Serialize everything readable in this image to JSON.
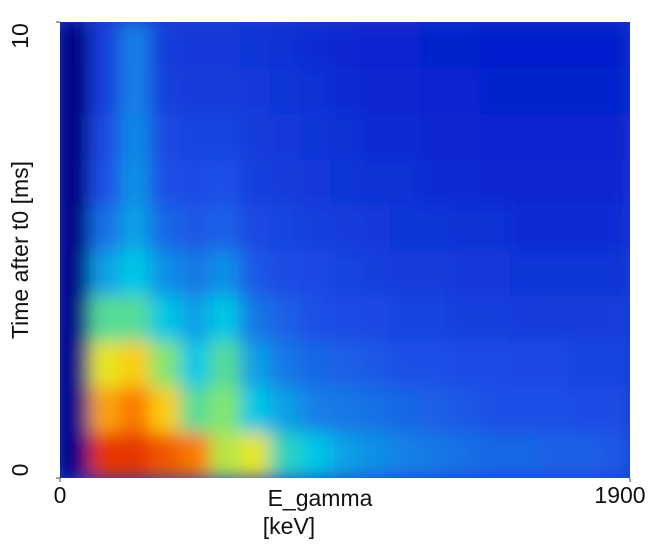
{
  "chart_data": {
    "type": "heatmap",
    "xlabel": [
      "E_gamma",
      "[keV]"
    ],
    "ylabel": "Time after t0 [ms]",
    "xlim": [
      0,
      1900
    ],
    "xticks": [
      0,
      1900
    ],
    "ylim": [
      0,
      10
    ],
    "yticks": [
      0,
      10
    ],
    "colormap": "jet",
    "zlim": [
      0,
      10
    ],
    "xbins": [
      0,
      100,
      200,
      300,
      400,
      500,
      600,
      700,
      800,
      900,
      1000,
      1100,
      1200,
      1300,
      1400,
      1500,
      1600,
      1700,
      1800,
      1900
    ],
    "ybins": [
      0,
      1,
      2,
      3,
      4,
      5,
      6,
      7,
      8,
      9,
      10
    ],
    "z": [
      [
        0.3,
        9.5,
        9.5,
        9,
        8.5,
        6.5,
        7,
        5,
        4.5,
        4,
        3.8,
        3.6,
        3.5,
        3.4,
        3.3,
        3.3,
        3.2,
        3.2,
        3.1
      ],
      [
        0.3,
        8,
        8.5,
        7.5,
        5.5,
        6,
        4.5,
        4,
        3.6,
        3.5,
        3.4,
        3.3,
        3.2,
        3.1,
        3,
        3,
        3,
        2.9,
        2.9
      ],
      [
        0.3,
        7,
        7.5,
        6,
        4.5,
        5.5,
        4,
        3.5,
        3.3,
        3.2,
        3.1,
        3,
        3,
        2.9,
        2.9,
        2.8,
        2.8,
        2.7,
        2.7
      ],
      [
        0.3,
        5.5,
        5.5,
        4.5,
        4,
        4.5,
        3.5,
        3.2,
        3,
        2.9,
        2.8,
        2.7,
        2.7,
        2.6,
        2.6,
        2.5,
        2.5,
        2.5,
        2.5
      ],
      [
        0.3,
        4,
        4.5,
        3.8,
        3.5,
        3.8,
        3.1,
        2.9,
        2.8,
        2.7,
        2.6,
        2.5,
        2.5,
        2.4,
        2.4,
        2.3,
        2.3,
        2.3,
        2.3
      ],
      [
        0.3,
        3.4,
        4,
        3.3,
        3.1,
        3.2,
        2.8,
        2.7,
        2.6,
        2.5,
        2.4,
        2.3,
        2.3,
        2.2,
        2.2,
        2.1,
        2.1,
        2.1,
        2.1
      ],
      [
        0.3,
        3,
        3.8,
        3,
        2.9,
        3,
        2.6,
        2.5,
        2.4,
        2.3,
        2.2,
        2.2,
        2.1,
        2.1,
        2,
        2,
        2,
        2,
        2
      ],
      [
        0.3,
        2.8,
        3.7,
        2.8,
        2.7,
        2.7,
        2.5,
        2.4,
        2.3,
        2.2,
        2.1,
        2.1,
        2,
        2,
        1.9,
        1.9,
        1.9,
        1.9,
        1.9
      ],
      [
        0.3,
        2.6,
        3.6,
        2.6,
        2.5,
        2.5,
        2.4,
        2.3,
        2.2,
        2.1,
        2,
        2,
        1.9,
        1.9,
        1.8,
        1.8,
        1.8,
        1.8,
        1.8
      ],
      [
        0.3,
        2.5,
        3.6,
        2.5,
        2.4,
        2.4,
        2.3,
        2.2,
        2.1,
        2,
        1.9,
        1.9,
        1.8,
        1.8,
        1.7,
        1.7,
        1.7,
        1.7,
        1.7
      ]
    ]
  }
}
